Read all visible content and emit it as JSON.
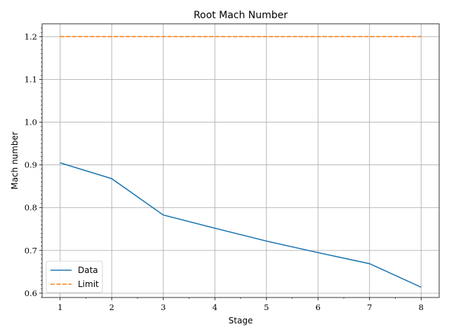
{
  "chart_data": {
    "type": "line",
    "title": "Root Mach Number",
    "xlabel": "Stage",
    "ylabel": "Mach number",
    "x": [
      1,
      2,
      3,
      4,
      5,
      6,
      7,
      8
    ],
    "xlim": [
      0.65,
      8.35
    ],
    "ylim": [
      0.59,
      1.23
    ],
    "xticks": [
      1,
      2,
      3,
      4,
      5,
      6,
      7,
      8
    ],
    "yticks": [
      0.6,
      0.7,
      0.8,
      0.9,
      1.0,
      1.1,
      1.2
    ],
    "grid": true,
    "legend_position": "lower-left",
    "series": [
      {
        "name": "Data",
        "color": "#1f77b4",
        "style": "solid",
        "values": [
          0.905,
          0.868,
          0.783,
          0.752,
          0.722,
          0.695,
          0.669,
          0.614
        ]
      },
      {
        "name": "Limit",
        "color": "#ff7f0e",
        "style": "dashed",
        "values": [
          1.2,
          1.2,
          1.2,
          1.2,
          1.2,
          1.2,
          1.2,
          1.2
        ]
      }
    ]
  }
}
